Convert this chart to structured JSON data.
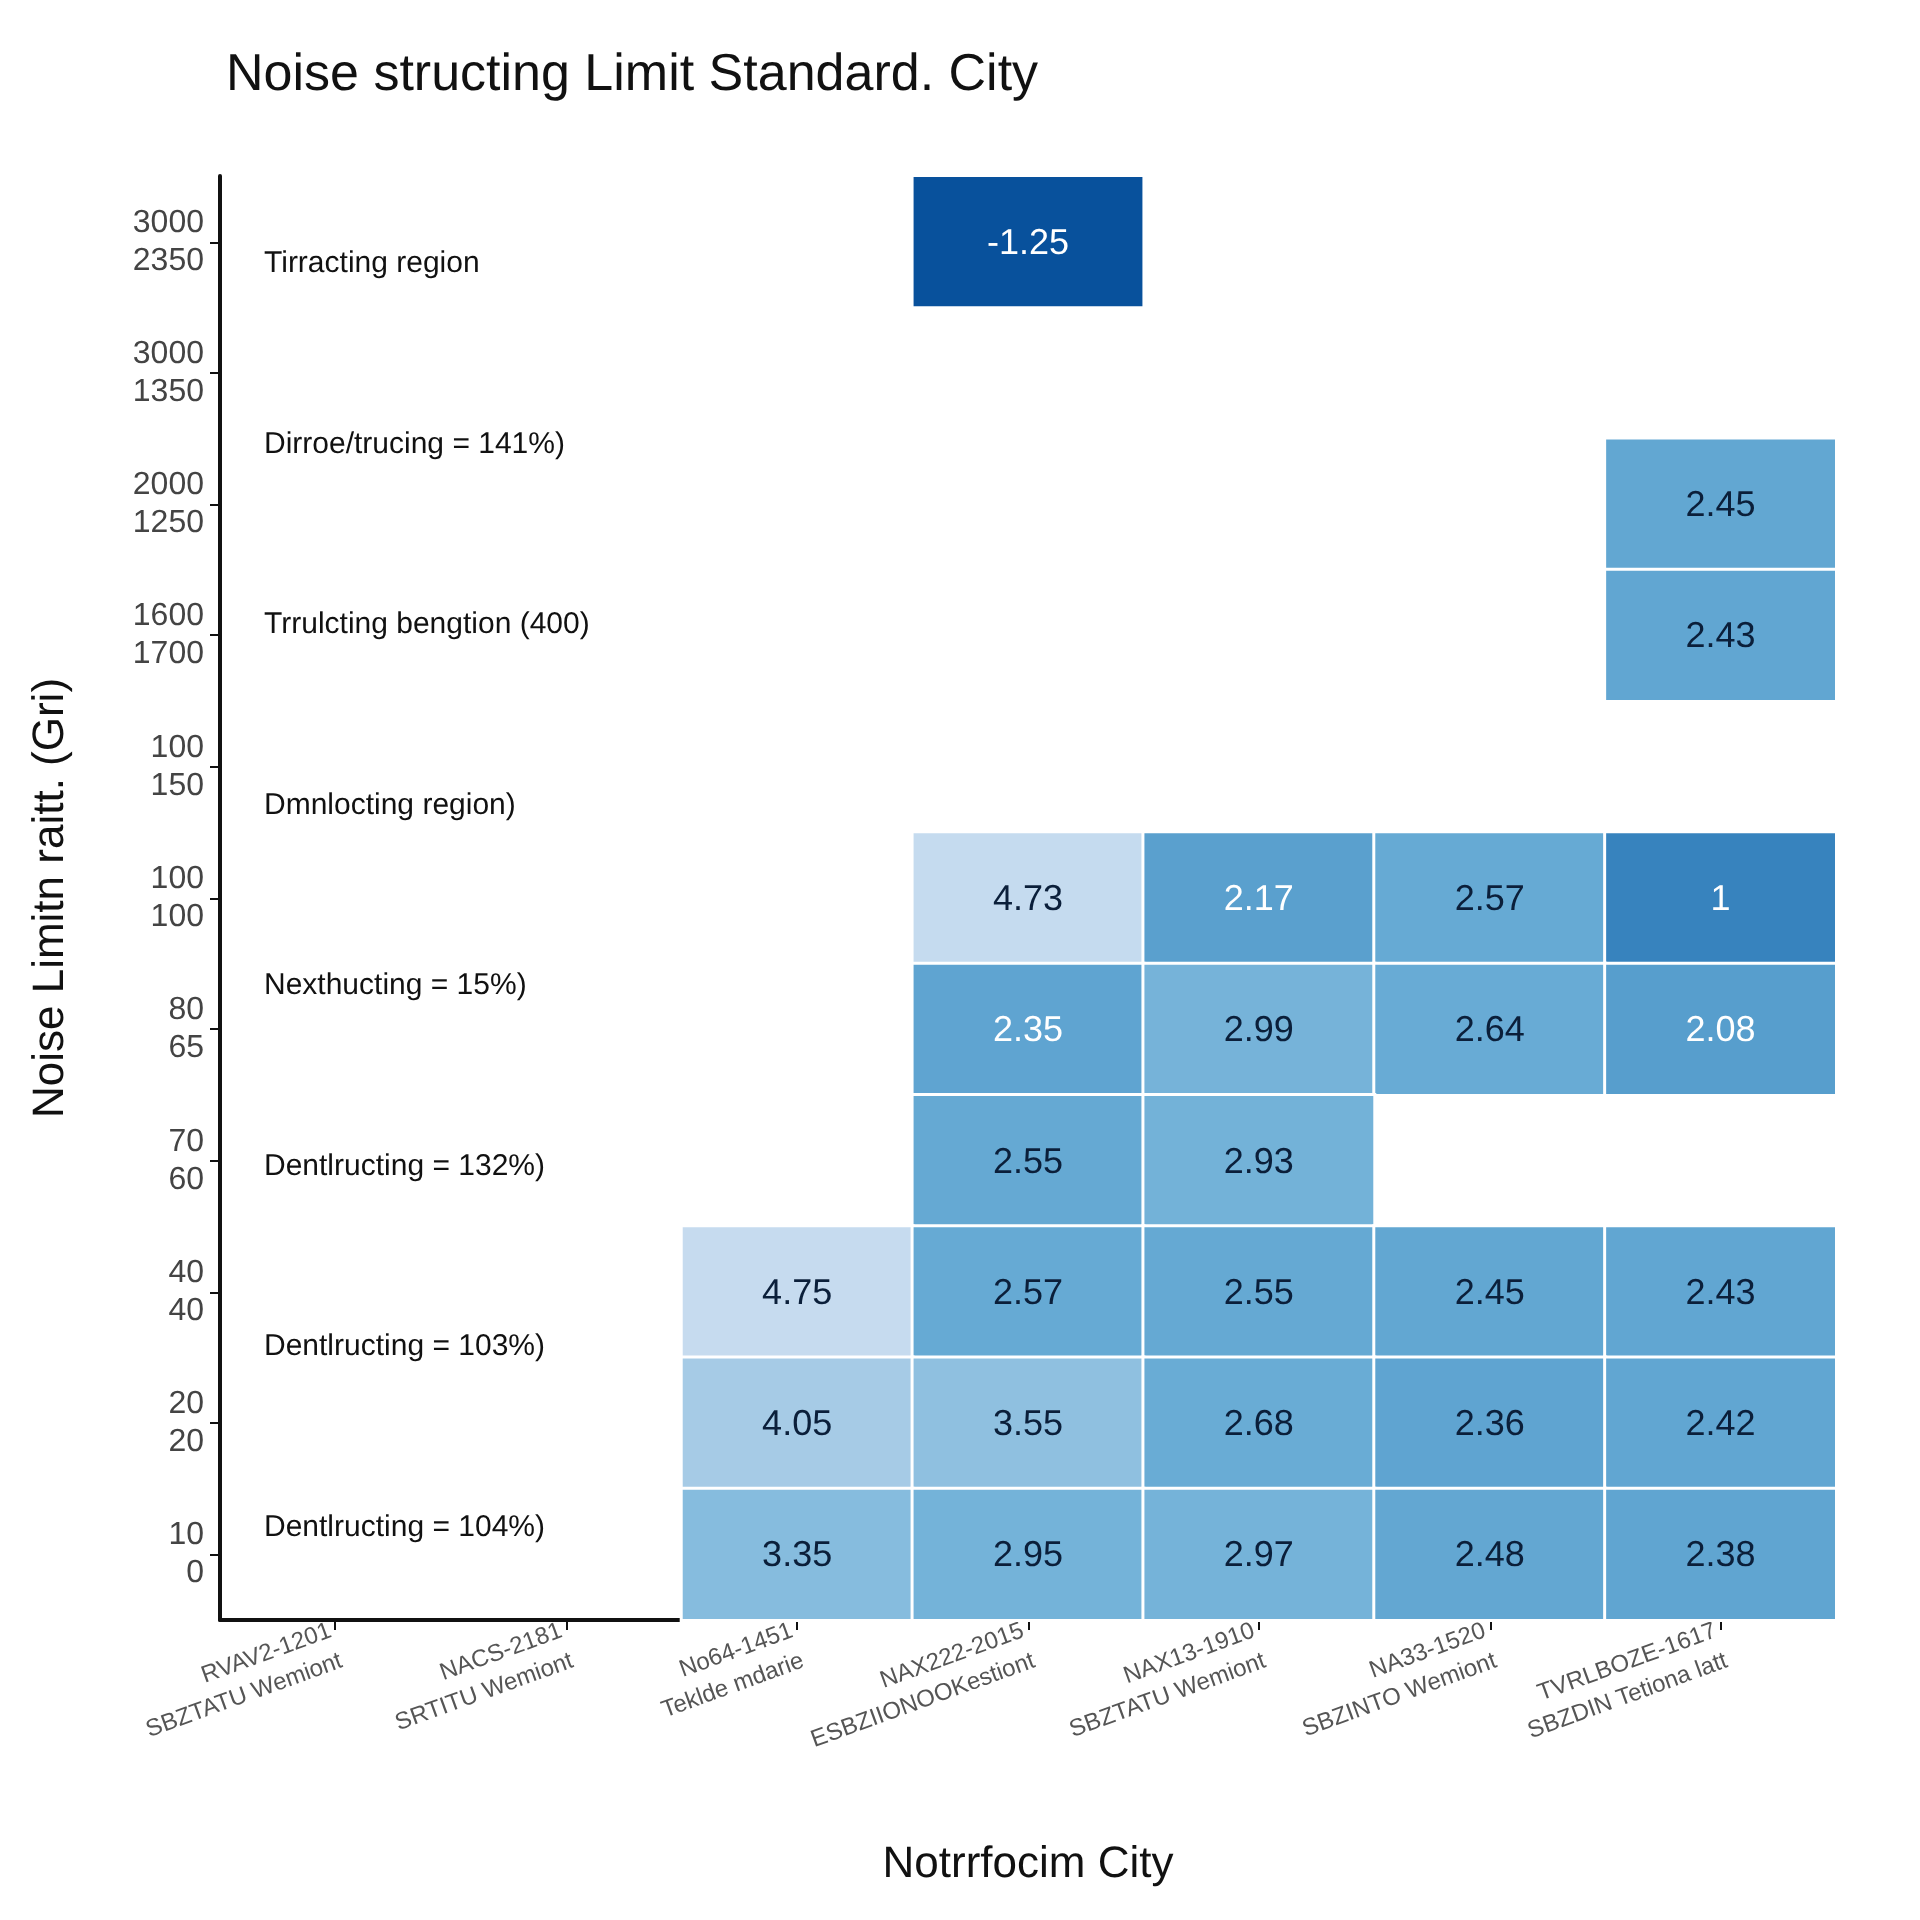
{
  "chart_data": {
    "type": "heatmap",
    "title": "Noise structing Limit Standard. City",
    "xlabel": "Notrrfocim City",
    "ylabel": "Noise Limitn raitt. (Gri)",
    "categories": [
      "RVAV2-1201\nSBZTATU Wemiont",
      "NACS-2181\nSRTITU Wemiont",
      "No64-1451\nTeklde mdarie",
      "NAX222-2015\nESBZIIONOOKestiont",
      "NAX13-1910\nSBZTATU Wemiont",
      "NA33-1520\nSBZINTO Wemiont",
      "TVRLBOZE-1617\nSBZDIN Tetiona latt"
    ],
    "y_categories": [
      "3000\n2350",
      "3000\n1350",
      "2000\n1250",
      "1600\n1700",
      "100\n150",
      "100\n100",
      "80\n65",
      "70\n60",
      "40\n40",
      "20\n20",
      "10\n0"
    ],
    "cells": [
      [
        null,
        null,
        null,
        -1.25,
        null,
        null,
        null
      ],
      [
        null,
        null,
        null,
        null,
        null,
        null,
        null
      ],
      [
        null,
        null,
        null,
        null,
        null,
        null,
        2.45
      ],
      [
        null,
        null,
        null,
        null,
        null,
        null,
        2.43
      ],
      [
        null,
        null,
        null,
        null,
        null,
        null,
        null
      ],
      [
        null,
        null,
        null,
        4.73,
        2.17,
        2.57,
        1
      ],
      [
        null,
        null,
        null,
        2.35,
        2.99,
        2.64,
        2.08
      ],
      [
        null,
        null,
        null,
        2.55,
        2.93,
        null,
        null
      ],
      [
        null,
        null,
        4.75,
        2.57,
        2.55,
        2.45,
        2.43
      ],
      [
        null,
        null,
        4.05,
        3.55,
        2.68,
        2.36,
        2.42
      ],
      [
        null,
        null,
        3.35,
        2.95,
        2.97,
        2.48,
        2.38
      ]
    ],
    "annotations": [
      "Tirracting region",
      "Dirroe/trucing = 141%)",
      "Trrulcting bengtion (400)",
      "Dmnlocting region)",
      "Nexthucting = 15%)",
      "Dentlructing = 132%)",
      "Dentlructing = 103%)",
      "Dentlructing = 104%)"
    ],
    "data_labels": true,
    "grid": false
  }
}
